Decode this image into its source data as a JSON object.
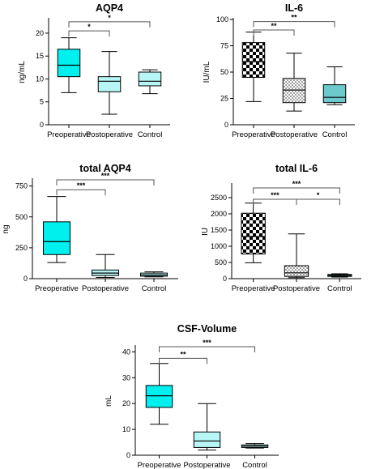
{
  "colors": {
    "cyan": "#00f0f0",
    "light_cyan": "#b8f6f6",
    "teal": "#6cc9cc",
    "axis": "#000000",
    "bracket": "#555555"
  },
  "chart_data": [
    {
      "type": "box",
      "title": "AQP4",
      "ylabel": "ng/mL",
      "xlabel": "",
      "ylim": [
        0,
        23
      ],
      "yticks": [
        0,
        5,
        10,
        15,
        20
      ],
      "categories": [
        "Preoperative",
        "Postoperative",
        "Control"
      ],
      "series": [
        {
          "category": "Preoperative",
          "min": 7,
          "q1": 10.5,
          "median": 13,
          "q3": 16.5,
          "max": 19,
          "fill": "cyan"
        },
        {
          "category": "Postoperative",
          "min": 2.3,
          "q1": 7.2,
          "median": 9.5,
          "q3": 10.5,
          "max": 16,
          "fill": "light_cyan"
        },
        {
          "category": "Control",
          "min": 6.8,
          "q1": 8.5,
          "median": 9.5,
          "q3": 11.5,
          "max": 12,
          "fill": "light_cyan"
        }
      ],
      "significance": [
        {
          "from": 0,
          "to": 1,
          "y": 20.5,
          "label": "*"
        },
        {
          "from": 0,
          "to": 2,
          "y": 22.5,
          "label": "*"
        }
      ]
    },
    {
      "type": "box",
      "title": "IL-6",
      "ylabel": "IU/mL",
      "xlabel": "",
      "ylim": [
        0,
        100
      ],
      "yticks": [
        0,
        25,
        50,
        75,
        100
      ],
      "categories": [
        "Preoperative",
        "Postoperative",
        "Control"
      ],
      "series": [
        {
          "category": "Preoperative",
          "min": 22,
          "q1": 45,
          "median": 60,
          "q3": 78,
          "max": 88,
          "fill": "checker"
        },
        {
          "category": "Postoperative",
          "min": 13,
          "q1": 21,
          "median": 33,
          "q3": 44,
          "max": 68,
          "fill": "dots"
        },
        {
          "category": "Control",
          "min": 19,
          "q1": 21,
          "median": 26,
          "q3": 38,
          "max": 55,
          "fill": "teal"
        }
      ],
      "significance": [
        {
          "from": 0,
          "to": 1,
          "y": 90,
          "label": "**"
        },
        {
          "from": 0,
          "to": 2,
          "y": 98,
          "label": "**"
        }
      ]
    },
    {
      "type": "box",
      "title": "total AQP4",
      "ylabel": "ng",
      "xlabel": "",
      "ylim": [
        0,
        800
      ],
      "yticks": [
        0,
        250,
        500,
        750
      ],
      "categories": [
        "Preoperative",
        "Postoperative",
        "Control"
      ],
      "series": [
        {
          "category": "Preoperative",
          "min": 130,
          "q1": 195,
          "median": 300,
          "q3": 460,
          "max": 665,
          "fill": "cyan"
        },
        {
          "category": "Postoperative",
          "min": 10,
          "q1": 25,
          "median": 45,
          "q3": 70,
          "max": 195,
          "fill": "light_cyan"
        },
        {
          "category": "Control",
          "min": 15,
          "q1": 20,
          "median": 30,
          "q3": 45,
          "max": 55,
          "fill": "light_cyan"
        }
      ],
      "significance": [
        {
          "from": 0,
          "to": 1,
          "y": 720,
          "label": "***"
        },
        {
          "from": 0,
          "to": 2,
          "y": 800,
          "label": "***"
        }
      ]
    },
    {
      "type": "box",
      "title": "total IL-6",
      "ylabel": "IU",
      "xlabel": "",
      "ylim": [
        0,
        2900
      ],
      "yticks": [
        0,
        500,
        1000,
        1500,
        2000,
        2500
      ],
      "categories": [
        "Preoperative",
        "Postoperative",
        "Control"
      ],
      "series": [
        {
          "category": "Preoperative",
          "min": 490,
          "q1": 760,
          "median": 1300,
          "q3": 2020,
          "max": 2330,
          "fill": "checker"
        },
        {
          "category": "Postoperative",
          "min": 30,
          "q1": 70,
          "median": 180,
          "q3": 400,
          "max": 1380,
          "fill": "dots"
        },
        {
          "category": "Control",
          "min": 50,
          "q1": 70,
          "median": 100,
          "q3": 130,
          "max": 150,
          "fill": "teal"
        }
      ],
      "significance": [
        {
          "from": 0,
          "to": 1,
          "y": 2450,
          "label": "***"
        },
        {
          "from": 1,
          "to": 2,
          "y": 2450,
          "label": "*"
        },
        {
          "from": 0,
          "to": 2,
          "y": 2800,
          "label": "***"
        }
      ]
    },
    {
      "type": "box",
      "title": "CSF-Volume",
      "ylabel": "mL",
      "xlabel": "",
      "ylim": [
        0,
        42
      ],
      "yticks": [
        0,
        10,
        20,
        30,
        40
      ],
      "categories": [
        "Preoperative",
        "Postoperative",
        "Control"
      ],
      "series": [
        {
          "category": "Preoperative",
          "min": 12,
          "q1": 18.5,
          "median": 23,
          "q3": 27,
          "max": 35.5,
          "fill": "cyan"
        },
        {
          "category": "Postoperative",
          "min": 2,
          "q1": 3,
          "median": 5.5,
          "q3": 9,
          "max": 20,
          "fill": "light_cyan"
        },
        {
          "category": "Control",
          "min": 2.8,
          "q1": 3,
          "median": 3.5,
          "q3": 4,
          "max": 4.5,
          "fill": "light_cyan"
        }
      ],
      "significance": [
        {
          "from": 0,
          "to": 1,
          "y": 37.5,
          "label": "**"
        },
        {
          "from": 0,
          "to": 2,
          "y": 42,
          "label": "***"
        }
      ]
    }
  ]
}
